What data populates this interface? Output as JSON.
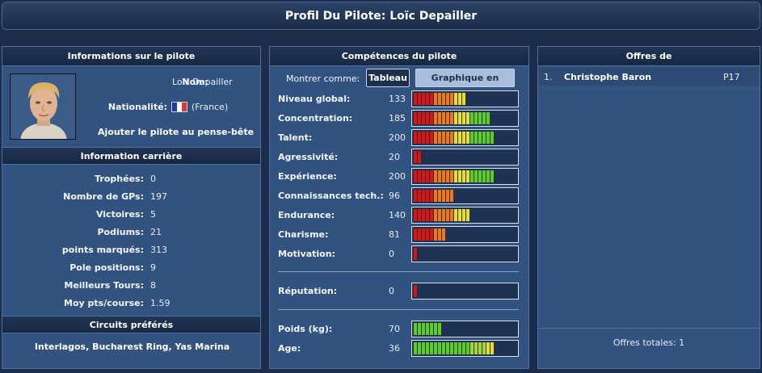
{
  "title": "Profil Du Pilote: Loïc Depailler",
  "driver_info": {
    "header": "Informations sur le pilote",
    "name_label": "Nom:",
    "name_value": "Loïc Depailler",
    "nationality_label": "Nationalité:",
    "nationality_value": "(France)",
    "flag_colors": [
      "#1f3ca6",
      "#ffffff",
      "#e23636"
    ],
    "watchlist_link": "Ajouter le pilote au pense-bête"
  },
  "career": {
    "header": "Information carrière",
    "stats": [
      {
        "label": "Trophées:",
        "value": "0"
      },
      {
        "label": "Nombre de GPs:",
        "value": "197"
      },
      {
        "label": "Victoires:",
        "value": "5"
      },
      {
        "label": "Podiums:",
        "value": "21"
      },
      {
        "label": "points marqués:",
        "value": "313"
      },
      {
        "label": "Pole positions:",
        "value": "9"
      },
      {
        "label": "Meilleurs Tours:",
        "value": "8"
      },
      {
        "label": "Moy pts/course:",
        "value": "1.59"
      }
    ]
  },
  "circuits": {
    "header": "Circuits préférés",
    "list": "Interlagos, Bucharest Ring, Yas Marina"
  },
  "skills": {
    "header": "Compétences du pilote",
    "show_as_label": "Montrer comme:",
    "table_button": "Tableau",
    "radar_button": "Graphique en radar",
    "max_value": 250,
    "rows": [
      {
        "label": "Niveau global:",
        "value": "133",
        "kind": "skill"
      },
      {
        "label": "Concentration:",
        "value": "185",
        "kind": "skill"
      },
      {
        "label": "Talent:",
        "value": "200",
        "kind": "skill"
      },
      {
        "label": "Agressivité:",
        "value": "20",
        "kind": "skill"
      },
      {
        "label": "Expérience:",
        "value": "200",
        "kind": "skill"
      },
      {
        "label": "Connaissances tech.:",
        "value": "96",
        "kind": "skill"
      },
      {
        "label": "Endurance:",
        "value": "140",
        "kind": "skill"
      },
      {
        "label": "Charisme:",
        "value": "81",
        "kind": "skill"
      },
      {
        "label": "Motivation:",
        "value": "0",
        "kind": "skill"
      }
    ],
    "reputation": {
      "label": "Réputation:",
      "value": "0",
      "kind": "skill"
    },
    "physical": [
      {
        "label": "Poids (kg):",
        "value": "70",
        "kind": "weight",
        "level": 0.27
      },
      {
        "label": "Age:",
        "value": "36",
        "kind": "age",
        "level": 0.78
      }
    ],
    "colors": {
      "red": "#d81414",
      "orange": "#f07a10",
      "yellow": "#e8e020",
      "green": "#58d020"
    }
  },
  "offers": {
    "header": "Offres de",
    "list": [
      {
        "num": "1.",
        "name": "Christophe Baron",
        "team": "P17"
      }
    ],
    "total": "Offres totales: 1"
  }
}
